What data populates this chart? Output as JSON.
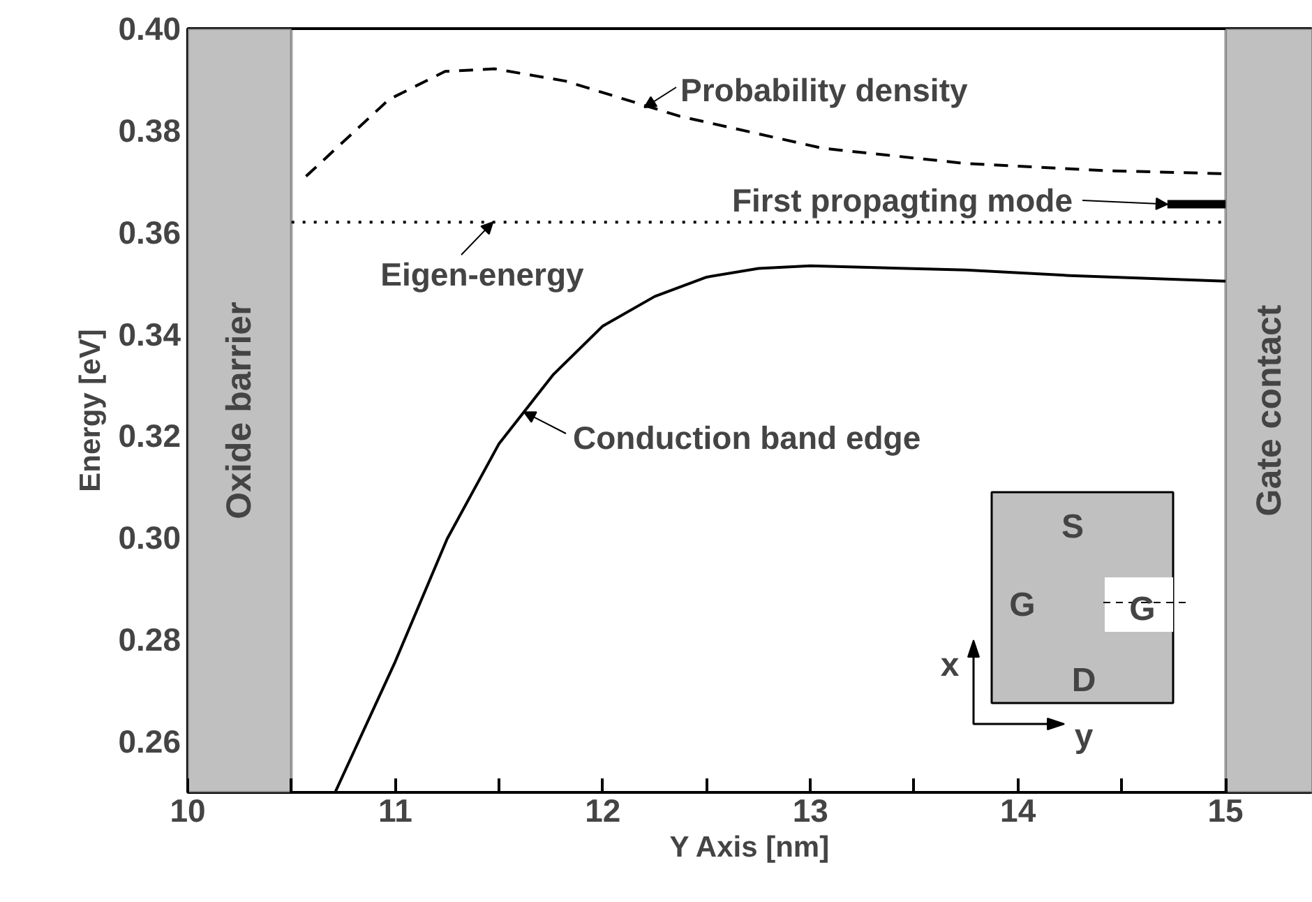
{
  "chart_data": {
    "type": "line",
    "xlabel": "Y Axis [nm]",
    "ylabel": "Energy [eV]",
    "xlim": [
      10,
      15.42
    ],
    "ylim": [
      0.25,
      0.4
    ],
    "xticks": [
      10,
      {
        "value": 10.5,
        "label": null
      },
      11,
      {
        "value": 11.5,
        "label": null
      },
      12,
      {
        "value": 12.5,
        "label": null
      },
      13,
      {
        "value": 13.5,
        "label": null
      },
      14,
      {
        "value": 14.5,
        "label": null
      },
      15
    ],
    "yticks": [
      0.26,
      0.28,
      {
        "value": 0.3,
        "label": "0.30"
      },
      0.32,
      0.34,
      0.36,
      0.38,
      {
        "value": 0.4,
        "label": "0.40"
      }
    ],
    "grid": false,
    "series": [
      {
        "color": "#000000",
        "line_style": "solid",
        "x": [
          10.71,
          11.0,
          11.25,
          11.5,
          11.76,
          12.0,
          12.25,
          12.5,
          12.75,
          13.0,
          13.75,
          14.25,
          15.0
        ],
        "values": [
          0.25,
          0.2757,
          0.2998,
          0.3185,
          0.332,
          0.3416,
          0.3474,
          0.3512,
          0.3529,
          0.3534,
          0.3526,
          0.3515,
          0.3504
        ]
      },
      {
        "color": "#000000",
        "line_style": "dashed",
        "x": [
          10.57,
          10.97,
          11.24,
          11.48,
          11.82,
          12.37,
          13.06,
          13.75,
          14.43,
          15.0
        ],
        "values": [
          0.371,
          0.3861,
          0.3916,
          0.3921,
          0.3897,
          0.3828,
          0.3765,
          0.3735,
          0.3721,
          0.3715
        ]
      },
      {
        "color": "#000000",
        "line_style": "dotted",
        "x": [
          10.5,
          15.0
        ],
        "values": [
          0.362,
          0.362
        ]
      },
      {
        "color": "#000000",
        "line_style": "solid",
        "x": [
          14.72,
          15.0
        ],
        "values": [
          0.3655,
          0.3655
        ]
      }
    ],
    "bands": [
      {
        "axis": "x",
        "from": 10,
        "to": 10.5,
        "label": "Oxide barrier",
        "color": "#c0c0c0"
      },
      {
        "axis": "x",
        "from": 15,
        "to": 15.42,
        "label": "Gate contact",
        "color": "#c0c0c0"
      }
    ],
    "annotations": [
      {
        "text": "Probability density",
        "x": 12.2,
        "y": 0.3845
      },
      {
        "text": "First propagting mode",
        "x": 14.72,
        "y": 0.3655
      },
      {
        "text": "Eigen-energy",
        "x": 11.47,
        "y": 0.362
      },
      {
        "text": "Conduction band edge",
        "x": 11.62,
        "y": 0.3247
      },
      "S",
      "G",
      "G",
      "D",
      "x",
      "y"
    ]
  }
}
